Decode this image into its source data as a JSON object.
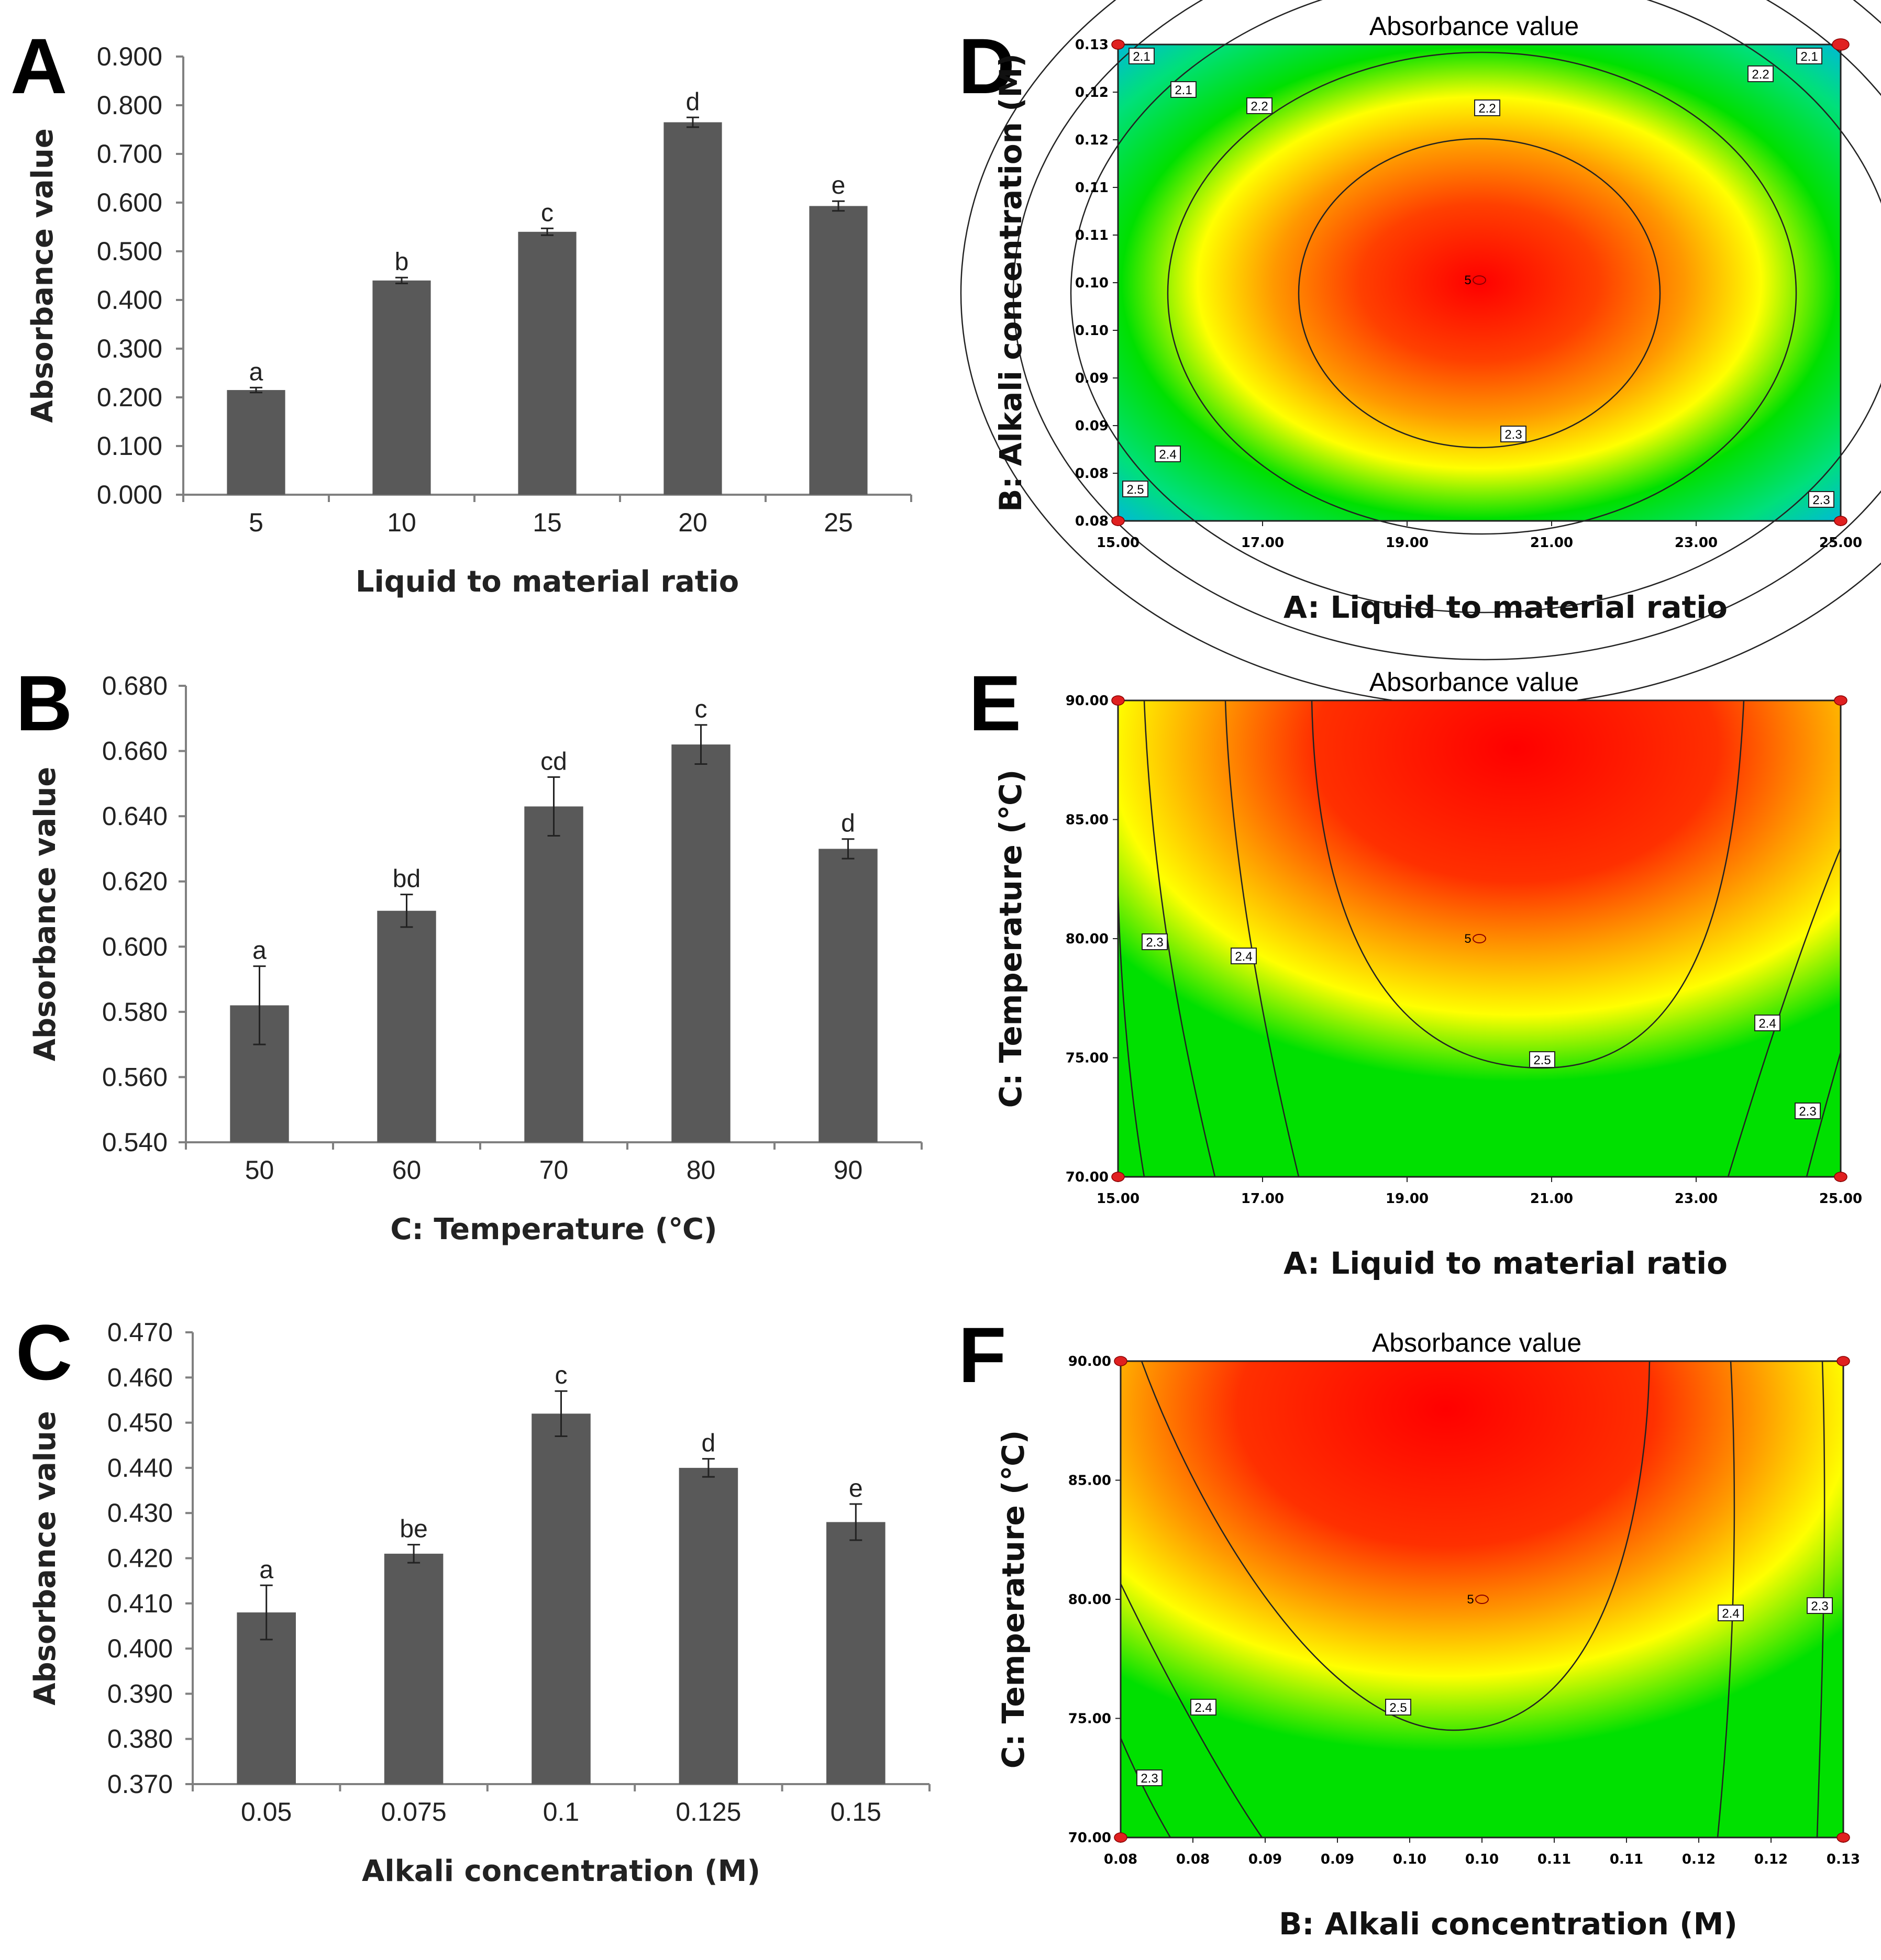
{
  "chart_data": [
    {
      "panel": "A",
      "type": "bar",
      "title": "",
      "xlabel": "Liquid to material ratio",
      "ylabel": "Absorbance value",
      "categories": [
        "5",
        "10",
        "15",
        "20",
        "25"
      ],
      "values": [
        0.215,
        0.44,
        0.54,
        0.765,
        0.593
      ],
      "errors": [
        0.005,
        0.006,
        0.007,
        0.01,
        0.01
      ],
      "letters": [
        "a",
        "b",
        "c",
        "d",
        "e"
      ],
      "ylim": [
        0,
        0.9
      ],
      "yticks": [
        "0.000",
        "0.100",
        "0.200",
        "0.300",
        "0.400",
        "0.500",
        "0.600",
        "0.700",
        "0.800",
        "0.900"
      ]
    },
    {
      "panel": "B",
      "type": "bar",
      "title": "",
      "xlabel": "C: Temperature (℃)",
      "ylabel": "Absorbance value",
      "categories": [
        "50",
        "60",
        "70",
        "80",
        "90"
      ],
      "values": [
        0.582,
        0.611,
        0.643,
        0.662,
        0.63
      ],
      "errors": [
        0.012,
        0.005,
        0.009,
        0.006,
        0.003
      ],
      "letters": [
        "a",
        "bd",
        "cd",
        "c",
        "d"
      ],
      "ylim": [
        0.54,
        0.68
      ],
      "yticks": [
        "0.540",
        "0.560",
        "0.580",
        "0.600",
        "0.620",
        "0.640",
        "0.660",
        "0.680"
      ]
    },
    {
      "panel": "C",
      "type": "bar",
      "title": "",
      "xlabel": "Alkali concentration (M)",
      "ylabel": "Absorbance value",
      "categories": [
        "0.05",
        "0.075",
        "0.1",
        "0.125",
        "0.15"
      ],
      "values": [
        0.408,
        0.421,
        0.452,
        0.44,
        0.428
      ],
      "errors": [
        0.006,
        0.002,
        0.005,
        0.002,
        0.004
      ],
      "letters": [
        "a",
        "be",
        "c",
        "d",
        "e"
      ],
      "ylim": [
        0.37,
        0.47
      ],
      "yticks": [
        "0.370",
        "0.380",
        "0.390",
        "0.400",
        "0.410",
        "0.420",
        "0.430",
        "0.440",
        "0.450",
        "0.460",
        "0.470"
      ]
    },
    {
      "panel": "D",
      "type": "heatmap",
      "title": "Absorbance value",
      "xlabel": "A: Liquid to material ratio",
      "ylabel": "B: Alkali concentration (M)",
      "xlim": [
        15,
        25
      ],
      "ylim": [
        0.075,
        0.125
      ],
      "xticks": [
        "15.00",
        "17.00",
        "19.00",
        "21.00",
        "23.00",
        "25.00"
      ],
      "yticks": [
        "0.08",
        "0.08",
        "0.09",
        "0.09",
        "0.10",
        "0.10",
        "0.11",
        "0.11",
        "0.12",
        "0.12",
        "0.13"
      ],
      "contour_levels": [
        "2.1",
        "2.2",
        "2.3",
        "2.4",
        "2.5"
      ],
      "center_label": "5",
      "contour_labels": [
        "2.1",
        "2.1",
        "2.2",
        "2.2",
        "2.3",
        "2.4",
        "2.5",
        "2.2",
        "2.1",
        "2.3"
      ]
    },
    {
      "panel": "E",
      "type": "heatmap",
      "title": "Absorbance value",
      "xlabel": "A: Liquid to material ratio",
      "ylabel": "C: Temperature (℃)",
      "xlim": [
        15,
        25
      ],
      "ylim": [
        70,
        90
      ],
      "xticks": [
        "15.00",
        "17.00",
        "19.00",
        "21.00",
        "23.00",
        "25.00"
      ],
      "yticks": [
        "70.00",
        "75.00",
        "80.00",
        "85.00",
        "90.00"
      ],
      "contour_levels": [
        "2.3",
        "2.4",
        "2.5"
      ],
      "center_label": "5",
      "contour_labels": [
        "2.3",
        "2.4",
        "2.5",
        "2.4",
        "2.3"
      ]
    },
    {
      "panel": "F",
      "type": "heatmap",
      "title": "Absorbance value",
      "xlabel": "B: Alkali concentration (M)",
      "ylabel": "C: Temperature (℃)",
      "xlim": [
        0.075,
        0.125
      ],
      "ylim": [
        70,
        90
      ],
      "xticks": [
        "0.08",
        "0.08",
        "0.09",
        "0.09",
        "0.10",
        "0.10",
        "0.11",
        "0.11",
        "0.12",
        "0.12",
        "0.13"
      ],
      "yticks": [
        "70.00",
        "75.00",
        "80.00",
        "85.00",
        "90.00"
      ],
      "contour_levels": [
        "2.3",
        "2.4",
        "2.5"
      ],
      "center_label": "5",
      "contour_labels": [
        "2.3",
        "2.4",
        "2.5",
        "2.4",
        "2.3"
      ]
    }
  ],
  "colors": {
    "bar": "#595959",
    "hot": "#ff0000",
    "warm": "#ff9900",
    "mid": "#ffff00",
    "cool": "#00e000",
    "cold": "#00c8ff",
    "design_point": "#e02020"
  }
}
